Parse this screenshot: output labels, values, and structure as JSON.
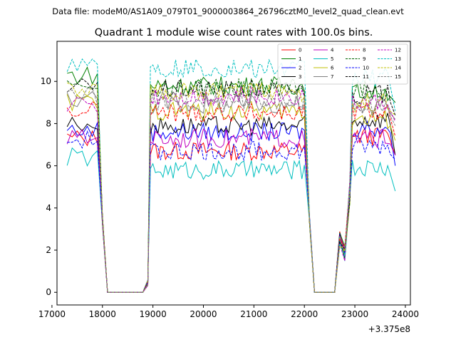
{
  "suptitle": "Data file: modeM0/AS1A09_079T01_9000003864_26796cztM0_level2_quad_clean.evt",
  "chart_data": {
    "type": "line",
    "title": "Quadrant 1 module wise count rates with 100.0s bins.",
    "xlabel": "",
    "ylabel": "",
    "x_offset_label": "+3.375e8",
    "xlim": [
      17100,
      24100
    ],
    "ylim": [
      -0.6,
      11.9
    ],
    "xticks": [
      17000,
      18000,
      19000,
      20000,
      21000,
      22000,
      23000,
      24000
    ],
    "xtick_labels": [
      "17000",
      "18000",
      "19000",
      "20000",
      "21000",
      "22000",
      "23000",
      "24000"
    ],
    "yticks": [
      0,
      2,
      4,
      6,
      8,
      10
    ],
    "ytick_labels": [
      "0",
      "2",
      "4",
      "6",
      "8",
      "10"
    ],
    "legend_loc": "upper right",
    "segments": [
      {
        "x_start": 17300,
        "x_end": 18000,
        "level": "high"
      },
      {
        "x_start": 18100,
        "x_end": 18800,
        "level": "zero"
      },
      {
        "x_start": 18850,
        "x_end": 18950,
        "level": "rise"
      },
      {
        "x_start": 19000,
        "x_end": 22100,
        "level": "high"
      },
      {
        "x_start": 22200,
        "x_end": 22600,
        "level": "zero"
      },
      {
        "x_start": 22700,
        "x_end": 22900,
        "level": "partial"
      },
      {
        "x_start": 23000,
        "x_end": 23800,
        "level": "high"
      }
    ],
    "series": [
      {
        "name": "0",
        "color": "#ff0000",
        "dash": "solid",
        "level_a": 7.3,
        "level_b": 6.7,
        "level_c": 7.4,
        "end": 6.5
      },
      {
        "name": "1",
        "color": "#008000",
        "dash": "solid",
        "level_a": 10.3,
        "level_b": 9.8,
        "level_c": 9.5,
        "end": 9.0
      },
      {
        "name": "2",
        "color": "#0000ff",
        "dash": "solid",
        "level_a": 7.7,
        "level_b": 7.6,
        "level_c": 7.8,
        "end": 6.0
      },
      {
        "name": "3",
        "color": "#000000",
        "dash": "solid",
        "level_a": 8.0,
        "level_b": 7.9,
        "level_c": 8.2,
        "end": 6.5
      },
      {
        "name": "4",
        "color": "#bf00bf",
        "dash": "solid",
        "level_a": 7.3,
        "level_b": 7.3,
        "level_c": 7.3,
        "end": 6.5
      },
      {
        "name": "5",
        "color": "#00bfbf",
        "dash": "solid",
        "level_a": 6.4,
        "level_b": 5.8,
        "level_c": 5.9,
        "end": 4.8
      },
      {
        "name": "6",
        "color": "#bfbf00",
        "dash": "solid",
        "level_a": 9.0,
        "level_b": 8.6,
        "level_c": 8.2,
        "end": 7.2
      },
      {
        "name": "7",
        "color": "#808080",
        "dash": "solid",
        "level_a": 9.2,
        "level_b": 8.9,
        "level_c": 8.8,
        "end": 8.2
      },
      {
        "name": "8",
        "color": "#ff0000",
        "dash": "dashed",
        "level_a": 8.6,
        "level_b": 8.5,
        "level_c": 8.6,
        "end": 7.4
      },
      {
        "name": "9",
        "color": "#006400",
        "dash": "dashed",
        "level_a": 10.0,
        "level_b": 9.7,
        "level_c": 9.6,
        "end": 9.0
      },
      {
        "name": "10",
        "color": "#0000ff",
        "dash": "dashed",
        "level_a": 7.2,
        "level_b": 6.7,
        "level_c": 6.9,
        "end": 6.3
      },
      {
        "name": "11",
        "color": "#000000",
        "dash": "dashed",
        "level_a": 9.7,
        "level_b": 9.6,
        "level_c": 9.4,
        "end": 8.4
      },
      {
        "name": "12",
        "color": "#bf00bf",
        "dash": "dashed",
        "level_a": 8.9,
        "level_b": 9.3,
        "level_c": 9.0,
        "end": 8.1
      },
      {
        "name": "13",
        "color": "#00bfbf",
        "dash": "dashed",
        "level_a": 10.9,
        "level_b": 10.6,
        "level_c": 10.2,
        "end": 8.6
      },
      {
        "name": "14",
        "color": "#bfbf00",
        "dash": "dashed",
        "level_a": 9.6,
        "level_b": 9.5,
        "level_c": 9.0,
        "end": 8.4
      },
      {
        "name": "15",
        "color": "#808080",
        "dash": "dashed",
        "level_a": 9.3,
        "level_b": 9.1,
        "level_c": 8.8,
        "end": 7.9
      }
    ]
  }
}
